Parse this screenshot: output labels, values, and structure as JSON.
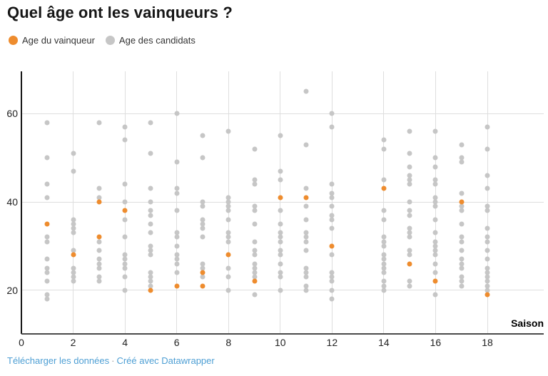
{
  "title": "Quel âge ont les vainqueurs ?",
  "legend": [
    {
      "label": "Age du vainqueur",
      "color": "#ee8c2e",
      "name": "winner"
    },
    {
      "label": "Age des candidats",
      "color": "#c6c6c6",
      "name": "candidates"
    }
  ],
  "footer": {
    "download_label": "Télécharger les données",
    "separator": "·",
    "credit_label": "Créé avec Datawrapper",
    "link_color": "#4e9fd4"
  },
  "colors": {
    "winner": "#ee8c2e",
    "candidates": "#c6c6c6",
    "gridline": "#dedede",
    "y_axis": "#161616",
    "x_axis": "#4a4a4a"
  },
  "chart_data": {
    "type": "scatter",
    "title": "Quel âge ont les vainqueurs ?",
    "xlabel": "Saison",
    "ylabel": "",
    "xlim": [
      0,
      20.2
    ],
    "ylim": [
      10,
      70
    ],
    "x_ticks": [
      0,
      2,
      4,
      6,
      8,
      10,
      12,
      14,
      16,
      18
    ],
    "y_ticks": [
      20,
      40,
      60
    ],
    "grid": true,
    "legend_position": "top-left",
    "series": [
      {
        "name": "Age du vainqueur",
        "color": "#ee8c2e",
        "points": [
          [
            1,
            35
          ],
          [
            2,
            28
          ],
          [
            3,
            40
          ],
          [
            3,
            32
          ],
          [
            4,
            38
          ],
          [
            5,
            20
          ],
          [
            6,
            21
          ],
          [
            7,
            24
          ],
          [
            7,
            21
          ],
          [
            8,
            28
          ],
          [
            9,
            22
          ],
          [
            10,
            41
          ],
          [
            11,
            41
          ],
          [
            12,
            30
          ],
          [
            14,
            43
          ],
          [
            15,
            26
          ],
          [
            16,
            22
          ],
          [
            17,
            40
          ],
          [
            18,
            19
          ]
        ]
      },
      {
        "name": "Age des candidats",
        "color": "#c6c6c6",
        "columns": [
          {
            "season": 1,
            "ages": [
              58,
              50,
              44,
              41,
              32,
              31,
              27,
              25,
              24,
              22,
              19,
              18
            ]
          },
          {
            "season": 2,
            "ages": [
              51,
              47,
              36,
              35,
              34,
              33,
              29,
              25,
              24,
              23,
              22
            ]
          },
          {
            "season": 3,
            "ages": [
              58,
              43,
              41,
              31,
              29,
              27,
              26,
              25,
              23,
              22
            ]
          },
          {
            "season": 4,
            "ages": [
              57,
              54,
              44,
              40,
              36,
              32,
              28,
              27,
              26,
              25,
              23,
              20
            ]
          },
          {
            "season": 5,
            "ages": [
              58,
              51,
              43,
              40,
              38,
              37,
              35,
              33,
              30,
              29,
              28,
              24,
              23,
              22,
              21
            ]
          },
          {
            "season": 6,
            "ages": [
              60,
              49,
              43,
              42,
              38,
              33,
              32,
              30,
              28,
              27,
              26,
              24
            ]
          },
          {
            "season": 7,
            "ages": [
              55,
              50,
              40,
              39,
              36,
              35,
              34,
              32,
              26,
              25,
              23
            ]
          },
          {
            "season": 8,
            "ages": [
              56,
              41,
              40,
              39,
              38,
              36,
              33,
              32,
              31,
              25,
              23,
              20
            ]
          },
          {
            "season": 9,
            "ages": [
              52,
              45,
              44,
              39,
              38,
              35,
              31,
              29,
              28,
              26,
              25,
              24,
              23,
              19
            ]
          },
          {
            "season": 10,
            "ages": [
              55,
              47,
              45,
              38,
              35,
              33,
              32,
              31,
              29,
              28,
              26,
              24,
              23,
              20
            ]
          },
          {
            "season": 11,
            "ages": [
              65,
              53,
              43,
              39,
              36,
              33,
              32,
              31,
              29,
              25,
              24,
              23,
              21,
              20
            ]
          },
          {
            "season": 12,
            "ages": [
              60,
              57,
              44,
              42,
              41,
              39,
              37,
              36,
              34,
              28,
              24,
              23,
              22,
              20,
              18
            ]
          },
          {
            "season": 14,
            "ages": [
              54,
              52,
              45,
              38,
              36,
              32,
              31,
              30,
              28,
              27,
              26,
              25,
              24,
              22,
              21,
              20
            ]
          },
          {
            "season": 15,
            "ages": [
              56,
              51,
              48,
              46,
              45,
              44,
              40,
              38,
              37,
              34,
              33,
              32,
              29,
              28,
              22,
              21
            ]
          },
          {
            "season": 16,
            "ages": [
              56,
              50,
              48,
              45,
              44,
              41,
              40,
              39,
              36,
              33,
              31,
              30,
              29,
              28,
              26,
              24,
              19
            ]
          },
          {
            "season": 17,
            "ages": [
              53,
              50,
              49,
              42,
              39,
              38,
              35,
              32,
              31,
              29,
              27,
              26,
              25,
              23,
              22,
              21
            ]
          },
          {
            "season": 18,
            "ages": [
              57,
              52,
              46,
              43,
              39,
              38,
              34,
              32,
              31,
              29,
              27,
              25,
              24,
              23,
              22,
              21,
              20
            ]
          }
        ]
      }
    ]
  }
}
